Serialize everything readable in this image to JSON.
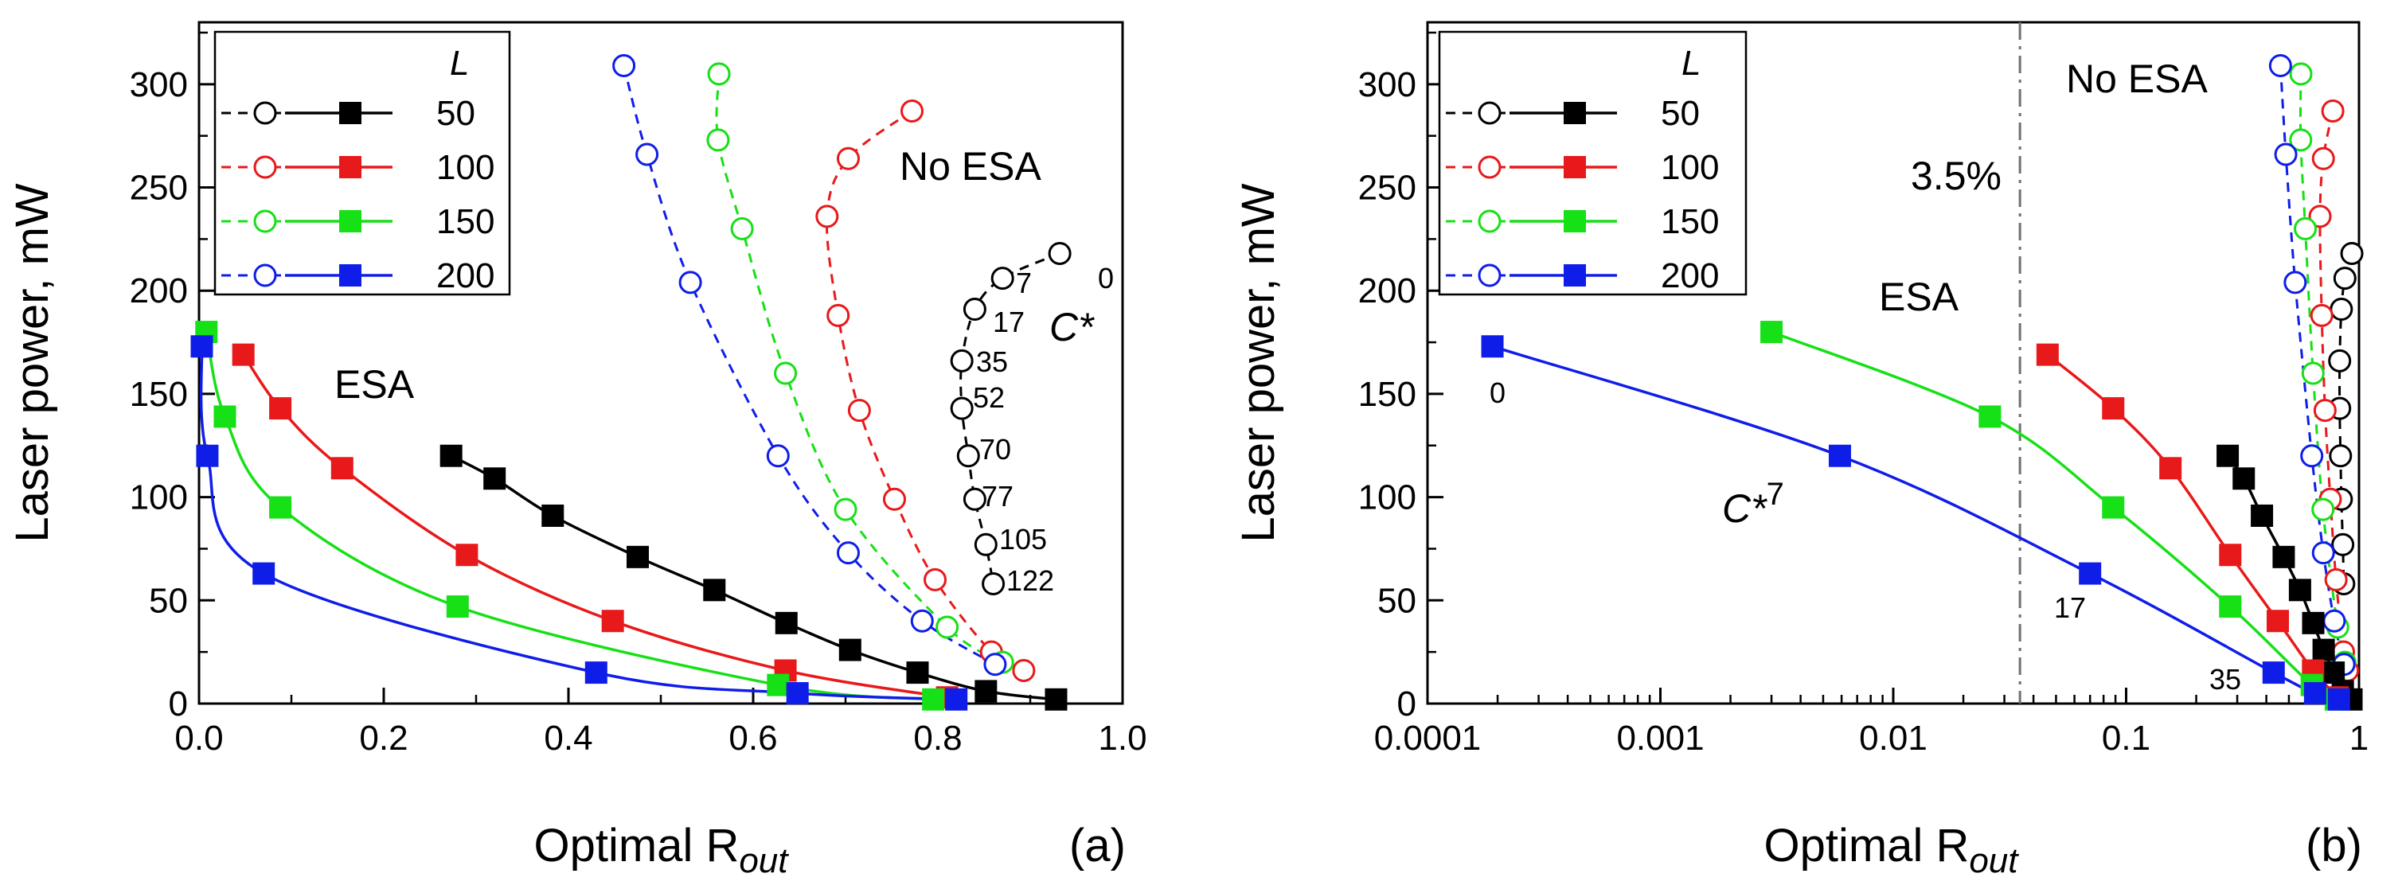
{
  "colors": {
    "L50": "#000000",
    "L100": "#e8191a",
    "L150": "#16e016",
    "L200": "#0f1de8"
  },
  "chart_data": [
    {
      "type": "line",
      "panel_label": "(a)",
      "x_scale": "linear",
      "xlabel": "Optimal R",
      "xlabel_sub": "out",
      "ylabel": "Laser power, mW",
      "xlim": [
        0,
        1.0
      ],
      "ylim": [
        0,
        330
      ],
      "xtick_values": [
        0,
        0.2,
        0.4,
        0.6,
        0.8,
        1.0
      ],
      "xtick_labels": [
        "0.0",
        "0.2",
        "0.4",
        "0.6",
        "0.8",
        "1.0"
      ],
      "ytick_values": [
        0,
        50,
        100,
        150,
        200,
        250,
        300
      ],
      "ytick_labels": [
        "0",
        "50",
        "100",
        "150",
        "200",
        "250",
        "300"
      ],
      "legend": {
        "position": "top-left",
        "title": "L",
        "entries": [
          "50",
          "100",
          "150",
          "200"
        ]
      },
      "series_esa": [
        {
          "name": "50",
          "color": "#000000",
          "x": [
            0.273,
            0.32,
            0.383,
            0.475,
            0.558,
            0.636,
            0.705,
            0.778,
            0.852,
            0.928
          ],
          "y": [
            120,
            109,
            91,
            71,
            55,
            39,
            26,
            15,
            6,
            2
          ]
        },
        {
          "name": "100",
          "color": "#e8191a",
          "x": [
            0.048,
            0.088,
            0.155,
            0.29,
            0.448,
            0.635,
            0.81
          ],
          "y": [
            169,
            143,
            114,
            72,
            40,
            16,
            3
          ]
        },
        {
          "name": "150",
          "color": "#16e016",
          "x": [
            0.008,
            0.028,
            0.088,
            0.28,
            0.627,
            0.795
          ],
          "y": [
            180,
            139,
            95,
            47,
            9,
            2
          ]
        },
        {
          "name": "200",
          "color": "#0f1de8",
          "x": [
            0.003,
            0.009,
            0.07,
            0.43,
            0.648,
            0.82
          ],
          "y": [
            173,
            120,
            63,
            15,
            5,
            2
          ]
        }
      ],
      "series_noesa": [
        {
          "name": "50",
          "color": "#000000",
          "x": [
            0.932,
            0.87,
            0.84,
            0.826,
            0.826,
            0.833,
            0.84,
            0.852,
            0.86
          ],
          "y": [
            218,
            206,
            191,
            166,
            143,
            120,
            99,
            77,
            58
          ]
        },
        {
          "name": "100",
          "color": "#e8191a",
          "x": [
            0.772,
            0.703,
            0.68,
            0.692,
            0.715,
            0.753,
            0.797,
            0.858,
            0.893
          ],
          "y": [
            287,
            264,
            236,
            188,
            142,
            99,
            60,
            25,
            16
          ]
        },
        {
          "name": "150",
          "color": "#16e016",
          "x": [
            0.563,
            0.562,
            0.588,
            0.635,
            0.7,
            0.81,
            0.87
          ],
          "y": [
            305,
            273,
            230,
            160,
            94,
            37,
            20
          ]
        },
        {
          "name": "200",
          "color": "#0f1de8",
          "x": [
            0.46,
            0.485,
            0.532,
            0.627,
            0.703,
            0.783,
            0.862
          ],
          "y": [
            309,
            266,
            204,
            120,
            73,
            40,
            19
          ]
        }
      ],
      "annotations": {
        "esa": "ESA",
        "noesa": "No ESA",
        "cstar": "C*",
        "cstar_labels": [
          "0",
          "7",
          "17",
          "35",
          "52",
          "70",
          "77",
          "105",
          "122"
        ]
      }
    },
    {
      "type": "line",
      "panel_label": "(b)",
      "x_scale": "log",
      "xlabel": "Optimal R",
      "xlabel_sub": "out",
      "ylabel": "Laser power, mW",
      "xlim": [
        0.0001,
        1.0
      ],
      "ylim": [
        0,
        330
      ],
      "xtick_values": [
        0.0001,
        0.001,
        0.01,
        0.1,
        1
      ],
      "xtick_labels": [
        "0.0001",
        "0.001",
        "0.01",
        "0.1",
        "1"
      ],
      "ytick_values": [
        0,
        50,
        100,
        150,
        200,
        250,
        300
      ],
      "ytick_labels": [
        "0",
        "50",
        "100",
        "150",
        "200",
        "250",
        "300"
      ],
      "legend": {
        "position": "top-left",
        "title": "L",
        "entries": [
          "50",
          "100",
          "150",
          "200"
        ]
      },
      "vline": {
        "x": 0.035,
        "label": "3.5%"
      },
      "series_esa": [
        {
          "name": "50",
          "color": "#000000",
          "x": [
            0.273,
            0.32,
            0.383,
            0.475,
            0.558,
            0.636,
            0.705,
            0.778,
            0.852,
            0.928
          ],
          "y": [
            120,
            109,
            91,
            71,
            55,
            39,
            26,
            15,
            6,
            2
          ]
        },
        {
          "name": "100",
          "color": "#e8191a",
          "x": [
            0.046,
            0.088,
            0.155,
            0.28,
            0.448,
            0.635,
            0.81
          ],
          "y": [
            169,
            143,
            114,
            72,
            40,
            16,
            3
          ]
        },
        {
          "name": "150",
          "color": "#16e016",
          "x": [
            0.003,
            0.026,
            0.088,
            0.28,
            0.627,
            0.795
          ],
          "y": [
            180,
            139,
            95,
            47,
            9,
            2
          ]
        },
        {
          "name": "200",
          "color": "#0f1de8",
          "x": [
            0.00019,
            0.0059,
            0.07,
            0.43,
            0.648,
            0.82
          ],
          "y": [
            173,
            120,
            63,
            15,
            5,
            2
          ]
        }
      ],
      "series_noesa": [
        {
          "name": "50",
          "color": "#000000",
          "x": [
            0.932,
            0.87,
            0.84,
            0.826,
            0.826,
            0.833,
            0.84,
            0.852,
            0.86
          ],
          "y": [
            218,
            206,
            191,
            166,
            143,
            120,
            99,
            77,
            58
          ]
        },
        {
          "name": "100",
          "color": "#e8191a",
          "x": [
            0.772,
            0.703,
            0.68,
            0.692,
            0.715,
            0.753,
            0.797,
            0.858,
            0.893
          ],
          "y": [
            287,
            264,
            236,
            188,
            142,
            99,
            60,
            25,
            16
          ]
        },
        {
          "name": "150",
          "color": "#16e016",
          "x": [
            0.563,
            0.562,
            0.588,
            0.635,
            0.7,
            0.81,
            0.87
          ],
          "y": [
            305,
            273,
            230,
            160,
            94,
            37,
            20
          ]
        },
        {
          "name": "200",
          "color": "#0f1de8",
          "x": [
            0.46,
            0.485,
            0.532,
            0.627,
            0.703,
            0.783,
            0.862
          ],
          "y": [
            309,
            266,
            204,
            120,
            73,
            40,
            19
          ]
        }
      ],
      "annotations": {
        "esa": "ESA",
        "noesa": "No ESA",
        "cstar": "C*",
        "cstar_sup": "7",
        "cstar_labels": [
          "0",
          "17",
          "35"
        ]
      }
    }
  ]
}
